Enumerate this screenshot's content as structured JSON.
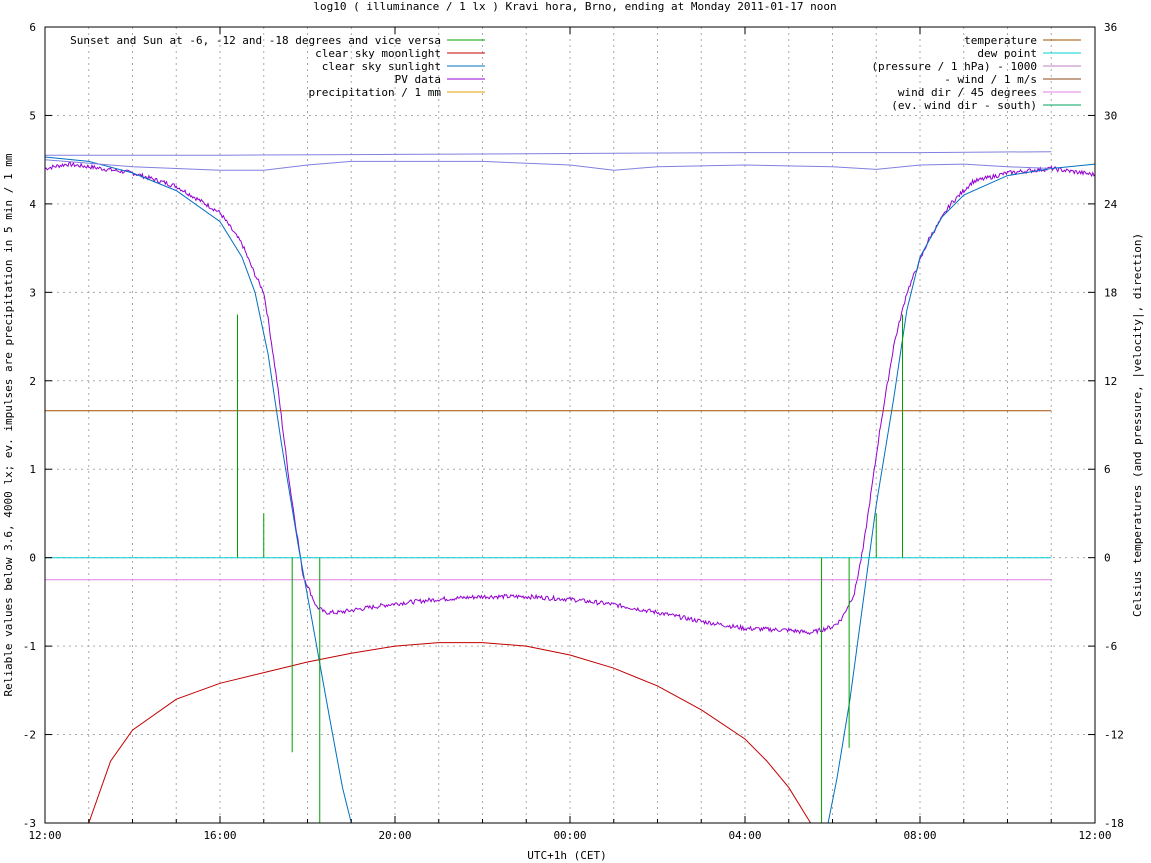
{
  "chart_data": {
    "type": "line",
    "title": "log10 ( illuminance / 1 lx ) Kravi hora, Brno, ending at Monday 2011-01-17 noon",
    "xlabel": "UTC+1h (CET)",
    "ylabel": "Reliable values below 3.6, 4000 lx; ev. impulses are precipitation in 5 min / 1 mm",
    "y2label": "Celsius temperatures (and pressure, |velocity|, direction)",
    "xlim": [
      0,
      24
    ],
    "ylim": [
      -3,
      6
    ],
    "y2lim": [
      -18,
      36
    ],
    "grid": true,
    "x_ticks": [
      {
        "v": 0,
        "label": "12:00"
      },
      {
        "v": 4,
        "label": "16:00"
      },
      {
        "v": 8,
        "label": "20:00"
      },
      {
        "v": 12,
        "label": "00:00"
      },
      {
        "v": 16,
        "label": "04:00"
      },
      {
        "v": 20,
        "label": "08:00"
      },
      {
        "v": 24,
        "label": "12:00"
      }
    ],
    "x_minor_step": 1,
    "y_ticks": [
      {
        "v": -3,
        "label": "-3"
      },
      {
        "v": -2,
        "label": "-2"
      },
      {
        "v": -1,
        "label": "-1"
      },
      {
        "v": 0,
        "label": "0"
      },
      {
        "v": 1,
        "label": "1"
      },
      {
        "v": 2,
        "label": "2"
      },
      {
        "v": 3,
        "label": "3"
      },
      {
        "v": 4,
        "label": "4"
      },
      {
        "v": 5,
        "label": "5"
      },
      {
        "v": 6,
        "label": "6"
      }
    ],
    "y2_ticks": [
      {
        "v": -18,
        "label": "-18"
      },
      {
        "v": -12,
        "label": "-12"
      },
      {
        "v": -6,
        "label": "-6"
      },
      {
        "v": 0,
        "label": "0"
      },
      {
        "v": 6,
        "label": "6"
      },
      {
        "v": 12,
        "label": "12"
      },
      {
        "v": 18,
        "label": "18"
      },
      {
        "v": 24,
        "label": "24"
      },
      {
        "v": 30,
        "label": "30"
      },
      {
        "v": 36,
        "label": "36"
      }
    ],
    "legend_left": [
      {
        "label": "Sunset and Sun at -6, -12 and -18 degrees and vice versa",
        "color": "#00a000"
      },
      {
        "label": "clear sky moonlight",
        "color": "#c00000"
      },
      {
        "label": "clear sky sunlight",
        "color": "#0070c0"
      },
      {
        "label": "PV data",
        "color": "#9400d3"
      },
      {
        "label": "precipitation / 1 mm",
        "color": "#e0a000"
      }
    ],
    "legend_right": [
      {
        "label": "temperature",
        "color": "#a05000"
      },
      {
        "label": "dew point",
        "color": "#00d0d0"
      },
      {
        "label": "(pressure / 1 hPa) - 1000",
        "color": "#c080c0"
      },
      {
        "label": "- wind / 1 m/s",
        "color": "#8b4513"
      },
      {
        "label": "wind dir / 45 degrees",
        "color": "#e080e0"
      },
      {
        "label": "(ev. wind dir - south)",
        "color": "#00a060"
      }
    ],
    "series": [
      {
        "name": "PV data",
        "color": "#9400d3",
        "axis": "y1",
        "noise": 0.025,
        "points": [
          [
            0,
            4.4
          ],
          [
            0.5,
            4.45
          ],
          [
            1,
            4.42
          ],
          [
            2,
            4.35
          ],
          [
            3,
            4.2
          ],
          [
            3.5,
            4.05
          ],
          [
            4,
            3.9
          ],
          [
            4.5,
            3.55
          ],
          [
            4.8,
            3.2
          ],
          [
            5,
            3.0
          ],
          [
            5.1,
            2.7
          ],
          [
            5.3,
            2.0
          ],
          [
            5.6,
            0.8
          ],
          [
            5.9,
            -0.2
          ],
          [
            6.2,
            -0.55
          ],
          [
            6.4,
            -0.62
          ],
          [
            6.7,
            -0.62
          ],
          [
            7.2,
            -0.58
          ],
          [
            8,
            -0.52
          ],
          [
            9,
            -0.47
          ],
          [
            10,
            -0.44
          ],
          [
            11,
            -0.44
          ],
          [
            12,
            -0.47
          ],
          [
            13,
            -0.53
          ],
          [
            14,
            -0.62
          ],
          [
            15,
            -0.72
          ],
          [
            16,
            -0.8
          ],
          [
            17,
            -0.82
          ],
          [
            17.5,
            -0.85
          ],
          [
            18,
            -0.78
          ],
          [
            18.2,
            -0.7
          ],
          [
            18.5,
            -0.4
          ],
          [
            18.7,
            0.1
          ],
          [
            18.9,
            0.8
          ],
          [
            19.1,
            1.5
          ],
          [
            19.4,
            2.4
          ],
          [
            19.7,
            3.0
          ],
          [
            20.2,
            3.6
          ],
          [
            20.7,
            4.0
          ],
          [
            21.2,
            4.25
          ],
          [
            22,
            4.35
          ],
          [
            23,
            4.4
          ],
          [
            24,
            4.33
          ]
        ]
      },
      {
        "name": "clear sky sunlight",
        "color": "#0070c0",
        "axis": "y1",
        "points": [
          [
            0,
            4.53
          ],
          [
            1,
            4.48
          ],
          [
            2,
            4.35
          ],
          [
            3,
            4.15
          ],
          [
            4,
            3.8
          ],
          [
            4.5,
            3.4
          ],
          [
            4.8,
            3.0
          ],
          [
            5.1,
            2.3
          ],
          [
            5.4,
            1.3
          ],
          [
            5.8,
            0.1
          ],
          [
            6.1,
            -0.7
          ],
          [
            6.5,
            -1.8
          ],
          [
            6.8,
            -2.6
          ],
          [
            7.0,
            -3.0
          ]
        ]
      },
      {
        "name": "clear sky sunlight morning",
        "color": "#0070c0",
        "axis": "y1",
        "points": [
          [
            17.9,
            -3.0
          ],
          [
            18.1,
            -2.5
          ],
          [
            18.4,
            -1.6
          ],
          [
            18.7,
            -0.5
          ],
          [
            19.0,
            0.6
          ],
          [
            19.4,
            1.8
          ],
          [
            19.7,
            2.8
          ],
          [
            20.0,
            3.4
          ],
          [
            20.5,
            3.85
          ],
          [
            21,
            4.1
          ],
          [
            22,
            4.32
          ],
          [
            23,
            4.4
          ],
          [
            24,
            4.45
          ]
        ]
      },
      {
        "name": "clear sky moonlight",
        "color": "#c00000",
        "axis": "y1",
        "points": [
          [
            1.0,
            -3.0
          ],
          [
            1.5,
            -2.3
          ],
          [
            2,
            -1.95
          ],
          [
            3,
            -1.6
          ],
          [
            4,
            -1.42
          ],
          [
            5,
            -1.3
          ],
          [
            6,
            -1.18
          ],
          [
            7,
            -1.08
          ],
          [
            8,
            -1.0
          ],
          [
            9,
            -0.96
          ],
          [
            10,
            -0.96
          ],
          [
            11,
            -1.0
          ],
          [
            12,
            -1.1
          ],
          [
            13,
            -1.25
          ],
          [
            14,
            -1.45
          ],
          [
            15,
            -1.72
          ],
          [
            16,
            -2.05
          ],
          [
            16.5,
            -2.3
          ],
          [
            17,
            -2.6
          ],
          [
            17.5,
            -3.0
          ]
        ]
      },
      {
        "name": "temperature",
        "color": "#a05000",
        "axis": "y1",
        "points": [
          [
            0,
            1.66
          ],
          [
            23,
            1.66
          ]
        ]
      },
      {
        "name": "dew point",
        "color": "#00d0d0",
        "axis": "y1",
        "points": [
          [
            0,
            0.0
          ],
          [
            23,
            0.0
          ]
        ]
      },
      {
        "name": "wind dir / 45 degrees",
        "color": "#e080e0",
        "axis": "y1",
        "points": [
          [
            0,
            -0.25
          ],
          [
            23,
            -0.25
          ]
        ]
      },
      {
        "name": "pressure upper",
        "color": "#8080e0",
        "axis": "y1",
        "points": [
          [
            0,
            4.55
          ],
          [
            4,
            4.55
          ],
          [
            8,
            4.56
          ],
          [
            12,
            4.57
          ],
          [
            16,
            4.58
          ],
          [
            20,
            4.58
          ],
          [
            23,
            4.59
          ]
        ]
      },
      {
        "name": "pressure lower",
        "color": "#8080e0",
        "axis": "y1",
        "points": [
          [
            0,
            4.5
          ],
          [
            2,
            4.42
          ],
          [
            4,
            4.38
          ],
          [
            5,
            4.38
          ],
          [
            6,
            4.44
          ],
          [
            7,
            4.48
          ],
          [
            10,
            4.48
          ],
          [
            12,
            4.44
          ],
          [
            13,
            4.38
          ],
          [
            14,
            4.42
          ],
          [
            16,
            4.44
          ],
          [
            18,
            4.42
          ],
          [
            19,
            4.39
          ],
          [
            20,
            4.44
          ],
          [
            21,
            4.45
          ],
          [
            22,
            4.42
          ],
          [
            23,
            4.4
          ]
        ]
      }
    ],
    "impulses": [
      {
        "x": 4.4,
        "y0": 0,
        "y1": 2.75,
        "color": "#00a000"
      },
      {
        "x": 5.0,
        "y0": 0,
        "y1": 0.5,
        "color": "#00a000"
      },
      {
        "x": 5.65,
        "y0": 0,
        "y1": -2.2,
        "color": "#00a000"
      },
      {
        "x": 6.28,
        "y0": 0,
        "y1": -3.0,
        "color": "#00a000"
      },
      {
        "x": 17.75,
        "y0": 0,
        "y1": -3.0,
        "color": "#00a000"
      },
      {
        "x": 18.38,
        "y0": 0,
        "y1": -2.15,
        "color": "#00a000"
      },
      {
        "x": 19.0,
        "y0": 0,
        "y1": 0.5,
        "color": "#00a000"
      },
      {
        "x": 19.6,
        "y0": 0,
        "y1": 2.75,
        "color": "#00a000"
      }
    ]
  }
}
